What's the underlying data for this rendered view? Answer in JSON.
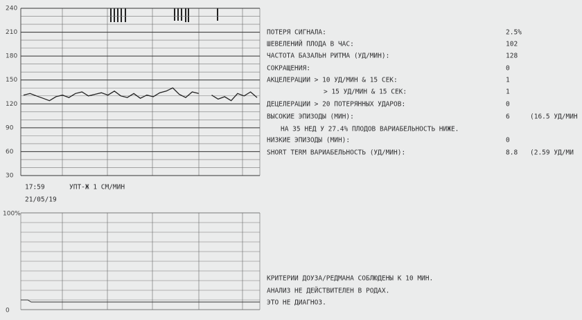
{
  "fhr_chart": {
    "ylim": [
      30,
      240
    ],
    "yticks": [
      240,
      210,
      180,
      150,
      120,
      90,
      60,
      30
    ],
    "trace": [
      131,
      133,
      130,
      127,
      124,
      129,
      131,
      128,
      133,
      135,
      130,
      132,
      134,
      131,
      136,
      130,
      128,
      133,
      127,
      131,
      129,
      134,
      136,
      140,
      132,
      128,
      135,
      133,
      null,
      131,
      126,
      129,
      124,
      133,
      130,
      135,
      128
    ]
  },
  "header": {
    "time": "17:59",
    "speed": "УПТ-Ж  1 СМ/МИН",
    "date": "21/05/19"
  },
  "toco_chart": {
    "top_label": "100%",
    "bottom_label": "0"
  },
  "report": {
    "rows": [
      [
        "ПОТЕРЯ СИГНАЛА:",
        "2.5%"
      ],
      [
        "ШЕВЕЛЕНИЙ ПЛОДА В ЧАС:",
        "102"
      ],
      [
        "ЧАСТОТА БАЗАЛЬН РИТМА (УД/МИН):",
        "128"
      ],
      [
        "СОКРАЩЕНИЯ:",
        "0"
      ],
      [
        "АКЦЕЛЕРАЦИИ > 10 УД/МИН & 15 СЕК:",
        "1"
      ],
      [
        "> 15 УД/МИН & 15 СЕК:",
        "1"
      ],
      [
        "ДЕЦЕЛЕРАЦИИ > 20 ПОТЕРЯННЫХ УДАРОВ:",
        "0"
      ],
      [
        "ВЫСОКИЕ ЭПИЗОДЫ (МИН):",
        "6",
        "(16.5 УД/МИН"
      ],
      [
        "НА 35 НЕД У 27.4% ПЛОДОВ ВАРИАБЕЛЬНОСТЬ НИЖЕ."
      ],
      [
        "НИЗКИЕ ЭПИЗОДЫ (МИН):",
        "0"
      ],
      [
        "SHORT TERM ВАРИАБЕЛЬНОСТЬ (УД/МИН):",
        "8.8",
        "(2.59 УД/МИ"
      ]
    ]
  },
  "footer": {
    "lines": [
      "КРИТЕРИИ ДОУЗА/РЕДМАНА СОБЛЮДЕНЫ К 10 МИН.",
      "АНАЛИЗ НЕ ДЕЙСТВИТЕЛЕН В РОДАХ.",
      "ЭТО НЕ ДИАГНОЗ."
    ]
  }
}
